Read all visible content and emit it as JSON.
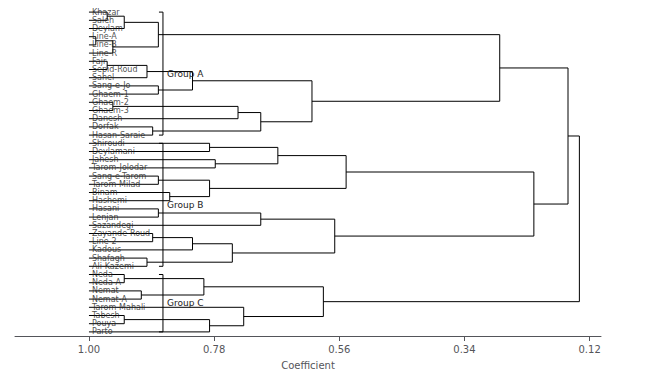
{
  "chart_data": {
    "type": "dendrogram",
    "x_label": "Coefficient",
    "categories": [
      "Khazar",
      "Saleh",
      "Deylam",
      "Line-A",
      "Line-B",
      "Line-R",
      "Fajr",
      "Sepid-Roud",
      "Sahel",
      "Sang-e-Jo",
      "Ghaem-1",
      "Ghaem-2",
      "Ghaem-3",
      "Danesh",
      "Dorfak",
      "Hasan-Saraie",
      "Shiroudi",
      "Deylamani",
      "Jahesh",
      "Tarom-Jolodar",
      "Sang-e-Tarom",
      "Tarom-Milad",
      "Binam",
      "Hashemi",
      "Hasani",
      "Lenjan",
      "Sazandegi",
      "Zayande-Roud",
      "Line-2",
      "Kadous",
      "Shafagh",
      "Ali-Kazemi",
      "Neda",
      "Neda-A",
      "Nemat",
      "Nemat-A",
      "Tarom-Mahali",
      "Tabesh",
      "Pouya",
      "Parto"
    ],
    "leaf_height": 1,
    "tree": {
      "height": 0.138,
      "children": [
        {
          "height": 0.158,
          "children": [
            {
              "height": 0.278,
              "children": [
                {
                  "height": 0.878,
                  "children": [
                    {
                      "height": 0.938,
                      "children": [
                        {
                          "height": 0.968,
                          "children": [
                            "Khazar",
                            "Saleh"
                          ]
                        },
                        "Deylam"
                      ]
                    },
                    {
                      "height": 0.958,
                      "children": [
                        {
                          "height": 0.988,
                          "children": [
                            "Line-A",
                            "Line-B"
                          ]
                        },
                        "Line-R"
                      ]
                    }
                  ]
                },
                {
                  "height": 0.608,
                  "children": [
                    {
                      "height": 0.818,
                      "children": [
                        {
                          "height": 0.898,
                          "children": [
                            {
                              "height": 0.968,
                              "children": [
                                "Fajr",
                                "Sepid-Roud"
                              ]
                            },
                            "Sahel"
                          ]
                        },
                        {
                          "height": 0.878,
                          "children": [
                            "Sang-e-Jo",
                            "Ghaem-1"
                          ]
                        }
                      ]
                    },
                    {
                      "height": 0.698,
                      "children": [
                        {
                          "height": 0.738,
                          "children": [
                            {
                              "height": 0.958,
                              "children": [
                                "Ghaem-2",
                                "Ghaem-3"
                              ]
                            },
                            "Danesh"
                          ]
                        },
                        {
                          "height": 0.888,
                          "children": [
                            "Dorfak",
                            "Hasan-Saraie"
                          ]
                        }
                      ]
                    }
                  ]
                }
              ]
            },
            {
              "height": 0.218,
              "children": [
                {
                  "height": 0.548,
                  "children": [
                    {
                      "height": 0.668,
                      "children": [
                        {
                          "height": 0.788,
                          "children": [
                            "Shiroudi",
                            "Deylamani"
                          ]
                        },
                        {
                          "height": 0.778,
                          "children": [
                            "Jahesh",
                            "Tarom-Jolodar"
                          ]
                        }
                      ]
                    },
                    {
                      "height": 0.788,
                      "children": [
                        {
                          "height": 0.878,
                          "children": [
                            "Sang-e-Tarom",
                            "Tarom-Milad"
                          ]
                        },
                        {
                          "height": 0.858,
                          "children": [
                            "Binam",
                            "Hashemi"
                          ]
                        }
                      ]
                    }
                  ]
                },
                {
                  "height": 0.568,
                  "children": [
                    {
                      "height": 0.698,
                      "children": [
                        {
                          "height": 0.878,
                          "children": [
                            "Hasani",
                            "Lenjan"
                          ]
                        },
                        "Sazandegi"
                      ]
                    },
                    {
                      "height": 0.748,
                      "children": [
                        {
                          "height": 0.818,
                          "children": [
                            {
                              "height": 0.888,
                              "children": [
                                "Zayande-Roud",
                                "Line-2"
                              ]
                            },
                            "Kadous"
                          ]
                        },
                        {
                          "height": 0.898,
                          "children": [
                            "Shafagh",
                            "Ali-Kazemi"
                          ]
                        }
                      ]
                    }
                  ]
                }
              ]
            }
          ]
        },
        {
          "height": 0.588,
          "children": [
            {
              "height": 0.798,
              "children": [
                {
                  "height": 0.938,
                  "children": [
                    "Neda",
                    "Neda-A"
                  ]
                },
                {
                  "height": 0.908,
                  "children": [
                    "Nemat",
                    "Nemat-A"
                  ]
                }
              ]
            },
            {
              "height": 0.728,
              "children": [
                "Tarom-Mahali",
                {
                  "height": 0.788,
                  "children": [
                    {
                      "height": 0.938,
                      "children": [
                        "Tabesh",
                        "Pouya"
                      ]
                    },
                    "Parto"
                  ]
                }
              ]
            }
          ]
        }
      ]
    },
    "groups": [
      {
        "name": "Group A",
        "from": "Khazar",
        "to": "Hasan-Saraie"
      },
      {
        "name": "Group B",
        "from": "Shiroudi",
        "to": "Ali-Kazemi"
      },
      {
        "name": "Group C",
        "from": "Neda",
        "to": "Parto"
      }
    ],
    "xlim": [
      1.13,
      0.1
    ],
    "xticks": [
      0.12,
      0.34,
      0.56,
      0.78,
      {
        "value": 1,
        "label": "1.00"
      }
    ],
    "color": "#000000",
    "grid": false
  }
}
